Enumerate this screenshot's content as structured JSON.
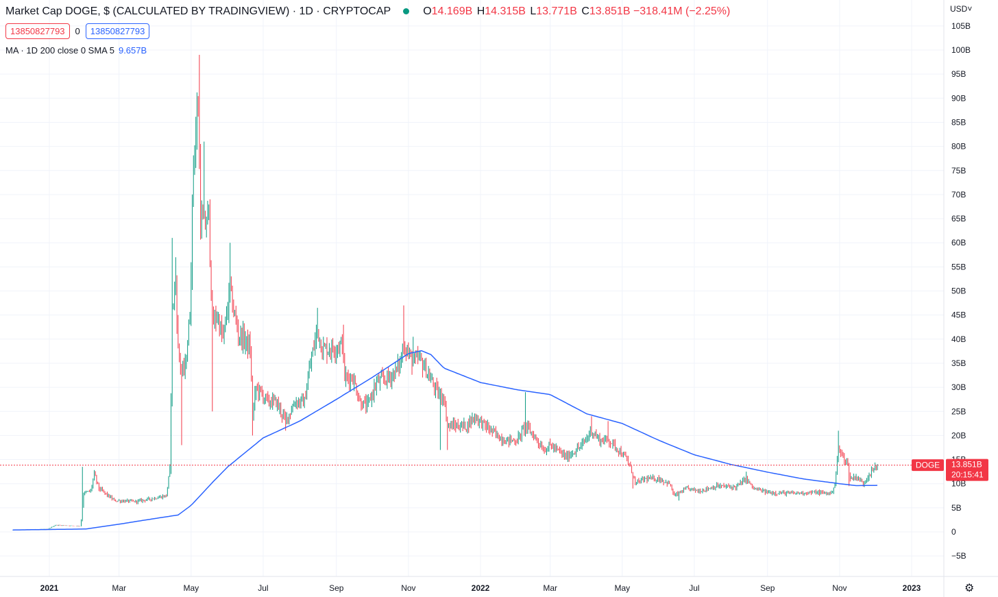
{
  "header": {
    "title": "Market Cap DOGE, $ (CALCULATED BY TRADINGVIEW) · 1D · CRYPTOCAP",
    "ohlc": {
      "o_label": "O",
      "o_value": "14.169B",
      "h_label": "H",
      "h_value": "14.315B",
      "l_label": "L",
      "l_value": "13.771B",
      "c_label": "C",
      "c_value": "13.851B",
      "change": "−318.41M (−2.25%)"
    },
    "input_left": "13850827793",
    "input_mid": "0",
    "input_right": "13850827793",
    "ma_label": "MA · 1D 200 close 0 SMA 5",
    "ma_value": "9.657B"
  },
  "currency": "USD",
  "colors": {
    "up": "#089981",
    "down": "#f23645",
    "ma": "#2962ff",
    "grid": "#f0f3fa"
  },
  "chart_data": {
    "type": "candlestick",
    "unit": "USD market cap (B)",
    "ylim": [
      -5,
      105
    ],
    "y_ticks": [
      "−5B",
      "0",
      "5B",
      "10B",
      "15B",
      "20B",
      "25B",
      "30B",
      "35B",
      "40B",
      "45B",
      "50B",
      "55B",
      "60B",
      "65B",
      "70B",
      "75B",
      "80B",
      "85B",
      "90B",
      "95B",
      "100B",
      "105B"
    ],
    "y_tick_values": [
      -5,
      0,
      5,
      10,
      15,
      20,
      25,
      30,
      35,
      40,
      45,
      50,
      55,
      60,
      65,
      70,
      75,
      80,
      85,
      90,
      95,
      100,
      105
    ],
    "x_ticks": [
      {
        "label": "2021",
        "date": "2021-01-01",
        "major": true
      },
      {
        "label": "Mar",
        "date": "2021-03-01",
        "major": false
      },
      {
        "label": "May",
        "date": "2021-05-01",
        "major": false
      },
      {
        "label": "Jul",
        "date": "2021-07-01",
        "major": false
      },
      {
        "label": "Sep",
        "date": "2021-09-01",
        "major": false
      },
      {
        "label": "Nov",
        "date": "2021-11-01",
        "major": false
      },
      {
        "label": "2022",
        "date": "2022-01-01",
        "major": true
      },
      {
        "label": "Mar",
        "date": "2022-03-01",
        "major": false
      },
      {
        "label": "May",
        "date": "2022-05-01",
        "major": false
      },
      {
        "label": "Jul",
        "date": "2022-07-01",
        "major": false
      },
      {
        "label": "Sep",
        "date": "2022-09-01",
        "major": false
      },
      {
        "label": "Nov",
        "date": "2022-11-01",
        "major": false
      },
      {
        "label": "2023",
        "date": "2023-01-01",
        "major": true
      }
    ],
    "price_keypoints": [
      [
        "2020-12-01",
        0.4
      ],
      [
        "2020-12-31",
        0.6
      ],
      [
        "2021-01-06",
        1.4
      ],
      [
        "2021-01-27",
        1.2
      ],
      [
        "2021-01-28",
        2.5
      ],
      [
        "2021-01-30",
        8
      ],
      [
        "2021-02-05",
        8.5
      ],
      [
        "2021-02-08",
        12
      ],
      [
        "2021-02-12",
        9
      ],
      [
        "2021-02-25",
        6.5
      ],
      [
        "2021-03-15",
        6.3
      ],
      [
        "2021-03-31",
        7
      ],
      [
        "2021-04-10",
        7.5
      ],
      [
        "2021-04-13",
        13
      ],
      [
        "2021-04-15",
        46
      ],
      [
        "2021-04-18",
        52
      ],
      [
        "2021-04-20",
        38
      ],
      [
        "2021-04-23",
        33
      ],
      [
        "2021-04-26",
        34
      ],
      [
        "2021-04-30",
        45
      ],
      [
        "2021-05-03",
        78
      ],
      [
        "2021-05-07",
        88
      ],
      [
        "2021-05-09",
        65
      ],
      [
        "2021-05-12",
        63
      ],
      [
        "2021-05-16",
        66
      ],
      [
        "2021-05-19",
        43
      ],
      [
        "2021-05-23",
        45
      ],
      [
        "2021-05-28",
        40
      ],
      [
        "2021-06-03",
        50
      ],
      [
        "2021-06-06",
        46
      ],
      [
        "2021-06-10",
        41
      ],
      [
        "2021-06-15",
        40
      ],
      [
        "2021-06-20",
        38
      ],
      [
        "2021-06-22",
        24
      ],
      [
        "2021-06-25",
        30
      ],
      [
        "2021-07-05",
        27
      ],
      [
        "2021-07-12",
        27
      ],
      [
        "2021-07-20",
        23
      ],
      [
        "2021-07-28",
        27
      ],
      [
        "2021-08-05",
        27
      ],
      [
        "2021-08-10",
        35
      ],
      [
        "2021-08-16",
        42
      ],
      [
        "2021-08-20",
        38
      ],
      [
        "2021-08-28",
        38
      ],
      [
        "2021-09-06",
        39
      ],
      [
        "2021-09-08",
        32
      ],
      [
        "2021-09-15",
        32
      ],
      [
        "2021-09-21",
        27
      ],
      [
        "2021-09-27",
        26
      ],
      [
        "2021-10-05",
        31
      ],
      [
        "2021-10-15",
        32
      ],
      [
        "2021-10-20",
        33
      ],
      [
        "2021-10-25",
        35
      ],
      [
        "2021-10-28",
        39
      ],
      [
        "2021-11-05",
        35
      ],
      [
        "2021-11-10",
        36
      ],
      [
        "2021-11-15",
        34
      ],
      [
        "2021-11-25",
        29
      ],
      [
        "2021-12-01",
        28
      ],
      [
        "2021-12-04",
        22
      ],
      [
        "2021-12-10",
        22
      ],
      [
        "2021-12-20",
        22
      ],
      [
        "2021-12-27",
        24
      ],
      [
        "2022-01-05",
        22
      ],
      [
        "2022-01-15",
        20
      ],
      [
        "2022-01-22",
        19
      ],
      [
        "2022-02-01",
        19
      ],
      [
        "2022-02-08",
        22
      ],
      [
        "2022-02-15",
        20
      ],
      [
        "2022-02-24",
        17
      ],
      [
        "2022-03-01",
        18
      ],
      [
        "2022-03-15",
        15.5
      ],
      [
        "2022-03-28",
        18
      ],
      [
        "2022-04-05",
        21
      ],
      [
        "2022-04-12",
        19
      ],
      [
        "2022-04-20",
        19
      ],
      [
        "2022-04-28",
        17
      ],
      [
        "2022-05-05",
        15
      ],
      [
        "2022-05-10",
        12
      ],
      [
        "2022-05-12",
        10
      ],
      [
        "2022-05-20",
        11
      ],
      [
        "2022-06-01",
        11
      ],
      [
        "2022-06-10",
        10
      ],
      [
        "2022-06-14",
        7.5
      ],
      [
        "2022-06-25",
        9
      ],
      [
        "2022-07-05",
        8.5
      ],
      [
        "2022-07-20",
        9.5
      ],
      [
        "2022-08-05",
        9.3
      ],
      [
        "2022-08-14",
        11
      ],
      [
        "2022-08-20",
        9
      ],
      [
        "2022-09-01",
        8.2
      ],
      [
        "2022-09-20",
        8
      ],
      [
        "2022-10-10",
        8.2
      ],
      [
        "2022-10-25",
        8
      ],
      [
        "2022-10-28",
        10
      ],
      [
        "2022-10-31",
        17
      ],
      [
        "2022-11-03",
        16
      ],
      [
        "2022-11-08",
        14
      ],
      [
        "2022-11-10",
        11
      ],
      [
        "2022-11-15",
        11.5
      ],
      [
        "2022-11-21",
        10
      ],
      [
        "2022-11-26",
        12
      ],
      [
        "2022-12-01",
        13.3
      ],
      [
        "2022-12-03",
        13.85
      ]
    ],
    "spikes": [
      [
        "2021-01-29",
        13.5
      ],
      [
        "2021-04-15",
        61
      ],
      [
        "2021-04-18",
        57
      ],
      [
        "2021-04-23",
        18
      ],
      [
        "2021-05-08",
        99
      ],
      [
        "2021-05-12",
        81
      ],
      [
        "2021-05-19",
        25
      ],
      [
        "2021-06-03",
        60
      ],
      [
        "2021-06-22",
        20
      ],
      [
        "2021-07-20",
        21
      ],
      [
        "2021-08-16",
        46.5
      ],
      [
        "2021-09-07",
        43
      ],
      [
        "2021-10-28",
        47
      ],
      [
        "2021-11-05",
        40.5
      ],
      [
        "2021-11-28",
        17
      ],
      [
        "2021-12-04",
        17
      ],
      [
        "2022-02-08",
        29
      ],
      [
        "2022-03-14",
        15
      ],
      [
        "2022-04-05",
        24
      ],
      [
        "2022-04-19",
        23
      ],
      [
        "2022-05-10",
        9
      ],
      [
        "2022-06-18",
        6.5
      ],
      [
        "2022-08-14",
        12.5
      ],
      [
        "2022-10-31",
        21
      ],
      [
        "2022-11-09",
        9.5
      ],
      [
        "2022-11-22",
        9.3
      ]
    ],
    "ma_keypoints": [
      [
        "2020-12-01",
        0.4
      ],
      [
        "2021-02-01",
        0.6
      ],
      [
        "2021-03-01",
        1.6
      ],
      [
        "2021-04-01",
        2.8
      ],
      [
        "2021-04-20",
        3.5
      ],
      [
        "2021-05-01",
        5.5
      ],
      [
        "2021-05-20",
        10.5
      ],
      [
        "2021-06-01",
        13.5
      ],
      [
        "2021-07-01",
        19.5
      ],
      [
        "2021-08-01",
        23
      ],
      [
        "2021-09-01",
        27.5
      ],
      [
        "2021-10-01",
        32
      ],
      [
        "2021-11-01",
        37
      ],
      [
        "2021-11-12",
        37.6
      ],
      [
        "2021-11-20",
        36.8
      ],
      [
        "2021-12-01",
        34
      ],
      [
        "2022-01-01",
        31
      ],
      [
        "2022-02-01",
        29.5
      ],
      [
        "2022-03-01",
        28.5
      ],
      [
        "2022-04-01",
        24.5
      ],
      [
        "2022-05-01",
        22.5
      ],
      [
        "2022-06-01",
        19
      ],
      [
        "2022-07-01",
        16
      ],
      [
        "2022-08-01",
        14
      ],
      [
        "2022-09-01",
        12.4
      ],
      [
        "2022-10-01",
        11
      ],
      [
        "2022-11-01",
        10
      ],
      [
        "2022-11-15",
        9.6
      ],
      [
        "2022-12-03",
        9.657
      ]
    ],
    "last_price": {
      "symbol": "DOGE",
      "value": "13.851B",
      "countdown": "20:15:41",
      "y": 13.851
    }
  }
}
